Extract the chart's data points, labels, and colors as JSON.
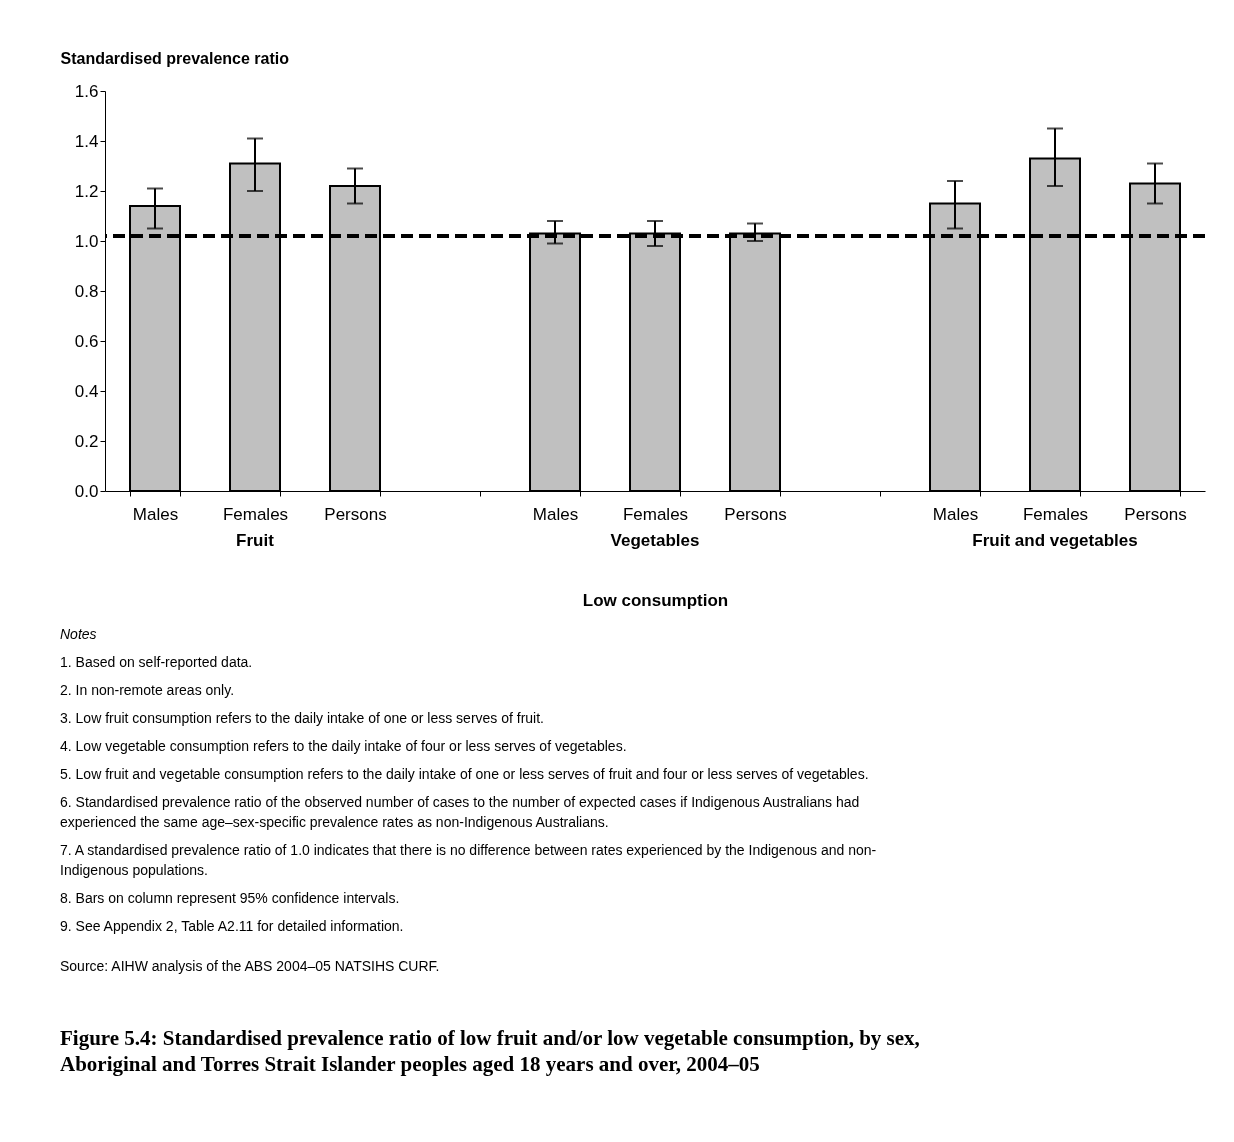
{
  "chart_data": {
    "type": "bar",
    "title": "Figure 5.4: Standardised prevalence ratio of low fruit and/or low vegetable consumption, by sex, Aboriginal and Torres Strait Islander peoples aged 18 years and over, 2004–05",
    "ylabel": "Standardised prevalence ratio",
    "xlabel": "Low consumption",
    "categories": [
      "Males",
      "Females",
      "Persons",
      null,
      "Males",
      "Females",
      "Persons",
      null,
      "Males",
      "Females",
      "Persons"
    ],
    "values": [
      1.14,
      1.31,
      1.22,
      null,
      1.03,
      1.03,
      1.03,
      null,
      1.15,
      1.33,
      1.23
    ],
    "errors": [
      [
        1.05,
        1.21
      ],
      [
        1.2,
        1.41
      ],
      [
        1.15,
        1.29
      ],
      null,
      [
        0.99,
        1.08
      ],
      [
        0.98,
        1.08
      ],
      [
        1.0,
        1.07
      ],
      null,
      [
        1.05,
        1.24
      ],
      [
        1.22,
        1.45
      ],
      [
        1.15,
        1.31
      ]
    ],
    "color": "#c0c0c0",
    "ylim": [
      0,
      1.6
    ],
    "yticks": [
      {
        "value": 0,
        "label": "0.0"
      },
      0.2,
      0.4,
      0.6,
      0.8,
      {
        "value": 1,
        "label": "1.0"
      },
      1.2,
      1.4,
      1.6
    ],
    "grid": false,
    "ref_lines": [
      {
        "axis": "y",
        "value": 1.02,
        "line_style": "dashed",
        "color": "#000000"
      }
    ],
    "annotations": [
      "Fruit",
      "Vegetables",
      "Fruit and vegetables",
      "Notes",
      "1.  Based on self-reported data.",
      "2.  In non-remote areas only.",
      "3.  Low fruit consumption refers to the daily intake of one or less serves of fruit.",
      "4.  Low vegetable consumption refers to the daily intake of four or less serves of vegetables.",
      "5.  Low fruit and vegetable consumption refers to the daily intake of one or less serves of fruit and four or less serves of vegetables.",
      "6.  Standardised prevalence ratio of the observed number of cases to the number of expected cases if Indigenous Australians had experienced the same age–sex-specific prevalence rates as non-Indigenous Australians.",
      "7.  A standardised prevalence ratio of 1.0 indicates that there is no difference between rates experienced by the Indigenous and non-Indigenous populations.",
      "8.  Bars on column represent 95% confidence intervals.",
      "9.  See Appendix 2, Table A2.11 for detailed information.",
      "Source: AIHW analysis of the ABS 2004–05 NATSIHS CURF."
    ]
  }
}
